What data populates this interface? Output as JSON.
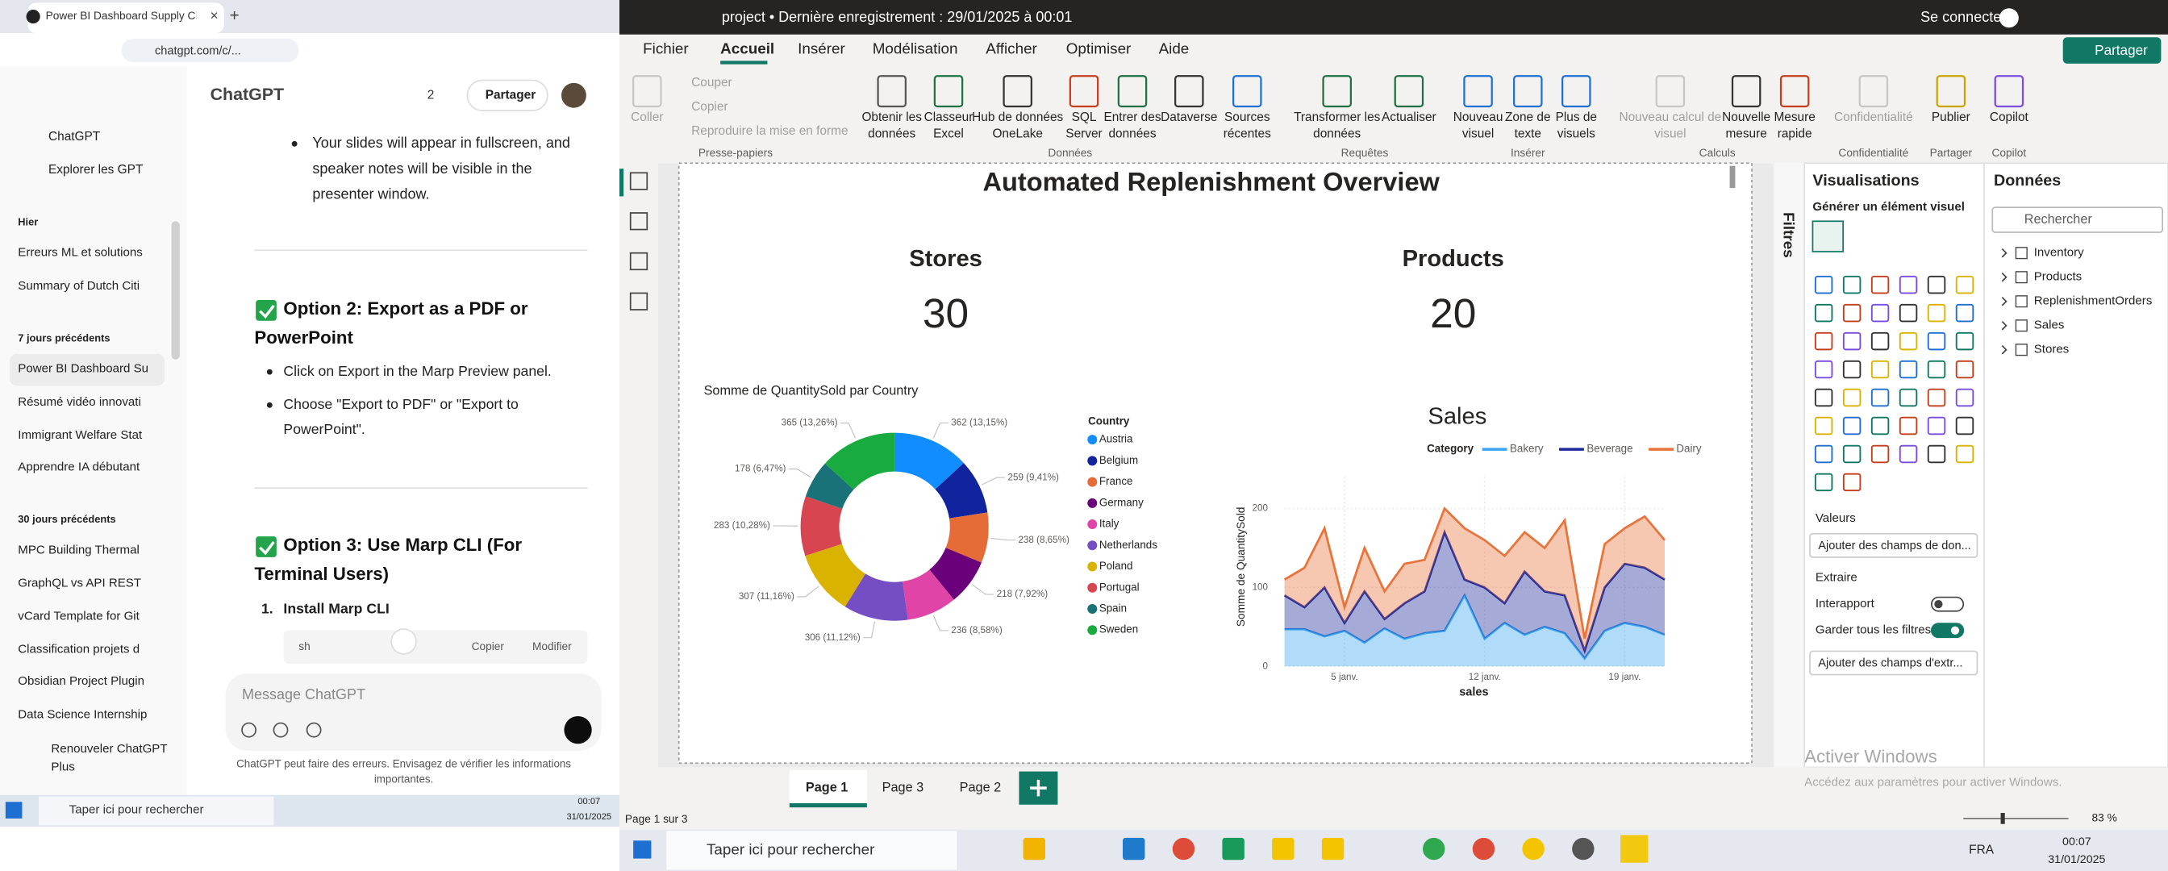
{
  "browser": {
    "tab_title": "Power BI Dashboard Supply Ch",
    "url": "chatgpt.com/c/..."
  },
  "chatgpt": {
    "title": "ChatGPT",
    "count": 2,
    "share": "Partager",
    "nav": [
      "ChatGPT",
      "Explorer les GPT"
    ],
    "sections": [
      {
        "title": "Hier",
        "items": [
          "Erreurs ML et solutions",
          "Summary of Dutch Citi"
        ]
      },
      {
        "title": "7 jours précédents",
        "items": [
          "Power BI Dashboard Su",
          "Résumé vidéo innovati",
          "Immigrant Welfare Stat",
          "Apprendre IA débutant"
        ]
      },
      {
        "title": "30 jours précédents",
        "items": [
          "MPC Building Thermal",
          "GraphQL vs API REST",
          "vCard Template for Git",
          "Classification projets d",
          "Obsidian Project Plugin",
          "Data Science Internship"
        ]
      }
    ],
    "upgrade": [
      "Renouveler ChatGPT",
      "Plus"
    ],
    "content": {
      "intro": [
        "Your slides will appear in fullscreen, and",
        "speaker notes will be visible in the",
        "presenter window."
      ],
      "option2_heading": [
        "Option 2: Export as a PDF or",
        "PowerPoint"
      ],
      "option2_bullets": [
        [
          "Click on Export in the Marp Preview panel."
        ],
        [
          "Choose \"Export to PDF\" or \"Export to",
          "PowerPoint\"."
        ]
      ],
      "option3_heading": [
        "Option 3: Use Marp CLI (For",
        "Terminal Users)"
      ],
      "step_number": "1.",
      "step": "Install Marp CLI",
      "code_lang": "sh",
      "copy": "Copier",
      "edit": "Modifier"
    },
    "input_placeholder": "Message ChatGPT",
    "disclaimer": [
      "ChatGPT peut faire des erreurs. Envisagez de vérifier les informations",
      "importantes."
    ]
  },
  "taskbar_left": {
    "search": "Taper ici pour rechercher",
    "time": "00:07",
    "date": "31/01/2025"
  },
  "powerbi": {
    "title": "project • Dernière enregistrement : 29/01/2025 à 00:01",
    "sign_in": "Se connecter",
    "share": "Partager",
    "tabs": [
      "Fichier",
      "Accueil",
      "Insérer",
      "Modélisation",
      "Afficher",
      "Optimiser",
      "Aide"
    ],
    "ribbon": {
      "buttons": [
        {
          "lines": [
            "Coller"
          ],
          "disabled": true
        },
        {
          "lines": [
            "Obtenir les",
            "données"
          ],
          "disabled": false
        },
        {
          "lines": [
            "Classeur",
            "Excel"
          ],
          "disabled": false
        },
        {
          "lines": [
            "Hub de données",
            "OneLake"
          ],
          "disabled": false
        },
        {
          "lines": [
            "SQL",
            "Server"
          ],
          "disabled": false
        },
        {
          "lines": [
            "Entrer des",
            "données"
          ],
          "disabled": false
        },
        {
          "lines": [
            "Dataverse"
          ],
          "disabled": false
        },
        {
          "lines": [
            "Sources",
            "récentes"
          ],
          "disabled": false
        },
        {
          "lines": [
            "Transformer les",
            "données"
          ],
          "disabled": false
        },
        {
          "lines": [
            "Actualiser"
          ],
          "disabled": false
        },
        {
          "lines": [
            "Nouveau",
            "visuel"
          ],
          "disabled": false
        },
        {
          "lines": [
            "Zone de",
            "texte"
          ],
          "disabled": false
        },
        {
          "lines": [
            "Plus de",
            "visuels"
          ],
          "disabled": false
        },
        {
          "lines": [
            "Nouveau calcul de",
            "visuel"
          ],
          "disabled": true
        },
        {
          "lines": [
            "Nouvelle",
            "mesure"
          ],
          "disabled": false
        },
        {
          "lines": [
            "Mesure",
            "rapide"
          ],
          "disabled": false
        },
        {
          "lines": [
            "Confidentialité"
          ],
          "disabled": true
        },
        {
          "lines": [
            "Publier"
          ],
          "disabled": false
        },
        {
          "lines": [
            "Copilot"
          ],
          "disabled": false
        }
      ],
      "clipboard": [
        "Couper",
        "Copier",
        "Reproduire la mise en forme"
      ],
      "groups": [
        "Presse-papiers",
        "Données",
        "Requêtes",
        "Insérer",
        "Calculs",
        "Confidentialité",
        "Partager",
        "Copilot"
      ]
    },
    "report": {
      "title": "Automated Replenishment Overview",
      "cards": [
        {
          "label": "Stores",
          "value": 30
        },
        {
          "label": "Products",
          "value": 20
        }
      ]
    },
    "filters": {
      "title": "Filtres"
    },
    "visualizations": {
      "title": "Visualisations",
      "subtitle": "Générer un élément visuel",
      "values_label": "Valeurs",
      "values_placeholder": "Ajouter des champs de don...",
      "drillthrough": "Extraire",
      "cross_report": "Interapport",
      "cross_report_on": false,
      "keep_filters": "Garder tous les filtres",
      "keep_filters_on": true,
      "drill_placeholder": "Ajouter des champs d'extr..."
    },
    "data_pane": {
      "title": "Données",
      "search": "Rechercher",
      "tables": [
        "Inventory",
        "Products",
        "ReplenishmentOrders",
        "Sales",
        "Stores"
      ]
    },
    "pages": [
      "Page 1",
      "Page 3",
      "Page 2"
    ],
    "status": {
      "page": "Page 1 sur 3",
      "zoom": "83 %"
    },
    "watermark": [
      "Activer Windows",
      "Accédez aux paramètres pour activer Windows."
    ]
  },
  "taskbar": {
    "search": "Taper ici pour rechercher",
    "language": "FRA",
    "time": "00:07",
    "date": "31/01/2025"
  },
  "chart_data": [
    {
      "type": "pie",
      "title": "Somme de QuantitySold par Country",
      "legend_title": "Country",
      "categories": [
        "Austria",
        "Belgium",
        "France",
        "Germany",
        "Italy",
        "Netherlands",
        "Poland",
        "Portugal",
        "Spain",
        "Sweden"
      ],
      "values": [
        362,
        259,
        238,
        218,
        236,
        306,
        307,
        283,
        178,
        365
      ],
      "value_labels": [
        "362 (13,15%)",
        "259 (9,41%)",
        "238 (8,65%)",
        "218 (7,92%)",
        "236 (8,58%)",
        "306 (11,12%)",
        "307 (11,16%)",
        "283 (10,28%)",
        "178 (6,47%)",
        "365 (13,26%)"
      ],
      "colors": [
        "#118dff",
        "#12239e",
        "#e66c37",
        "#6b007b",
        "#e044a7",
        "#744ec2",
        "#d9b300",
        "#d64550",
        "#197278",
        "#1aab40"
      ]
    },
    {
      "type": "area",
      "stacked": true,
      "title": "Sales",
      "legend_title": "Category",
      "xlabel": "sales",
      "ylabel": "Somme de QuantitySold",
      "x": [
        2,
        3,
        4,
        5,
        6,
        7,
        8,
        9,
        10,
        11,
        12,
        13,
        14,
        15,
        16,
        17,
        18,
        19,
        20,
        21
      ],
      "xlim": [
        2,
        21
      ],
      "xticks": [
        {
          "value": 5,
          "label": "5 janv."
        },
        {
          "value": 12,
          "label": "12 janv."
        },
        {
          "value": 19,
          "label": "19 janv."
        }
      ],
      "ylim": [
        0,
        240
      ],
      "yticks": [
        0,
        100,
        200
      ],
      "grid": true,
      "series": [
        {
          "name": "Bakery",
          "color": "#3aa5f0",
          "values": [
            47,
            47,
            38,
            45,
            30,
            48,
            35,
            42,
            45,
            90,
            35,
            55,
            40,
            50,
            42,
            10,
            45,
            55,
            50,
            40
          ]
        },
        {
          "name": "Beverage",
          "color": "#1d2b9c",
          "values": [
            43,
            28,
            62,
            10,
            65,
            12,
            45,
            53,
            125,
            20,
            65,
            25,
            80,
            45,
            48,
            10,
            55,
            75,
            75,
            70
          ]
        },
        {
          "name": "Dairy",
          "color": "#e8743b",
          "values": [
            20,
            50,
            75,
            20,
            55,
            35,
            50,
            40,
            30,
            65,
            60,
            60,
            50,
            55,
            95,
            15,
            55,
            45,
            65,
            50
          ]
        }
      ]
    }
  ]
}
